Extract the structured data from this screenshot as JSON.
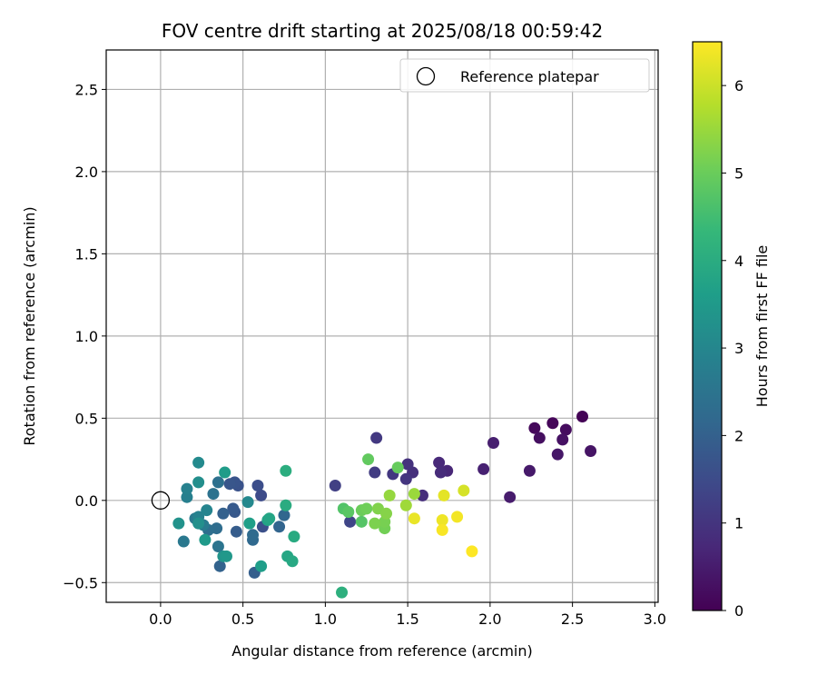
{
  "chart_data": {
    "type": "scatter",
    "title": "FOV centre drift starting at 2025/08/18 00:59:42",
    "xlabel": "Angular distance from reference (arcmin)",
    "ylabel": "Rotation from reference (arcmin)",
    "xlim": [
      -0.33,
      3.02
    ],
    "ylim": [
      -0.62,
      2.74
    ],
    "xticks": [
      0.0,
      0.5,
      1.0,
      1.5,
      2.0,
      2.5,
      3.0
    ],
    "xtick_labels": [
      "0.0",
      "0.5",
      "1.0",
      "1.5",
      "2.0",
      "2.5",
      "3.0"
    ],
    "yticks": [
      -0.5,
      0.0,
      0.5,
      1.0,
      1.5,
      2.0,
      2.5
    ],
    "ytick_labels": [
      "−0.5",
      "0.0",
      "0.5",
      "1.0",
      "1.5",
      "2.0",
      "2.5"
    ],
    "grid": true,
    "legend": {
      "placement": "top-right",
      "label": "Reference platepar"
    },
    "reference_point": {
      "x": 0.0,
      "y": 0.0
    },
    "colorbar": {
      "label": "Hours from first FF file",
      "colormap": "viridis",
      "range": [
        0,
        6.5
      ],
      "ticks": [
        0,
        1,
        2,
        3,
        4,
        5,
        6
      ],
      "tick_labels": [
        "0",
        "1",
        "2",
        "3",
        "4",
        "5",
        "6"
      ]
    },
    "points": [
      {
        "x": 2.56,
        "y": 0.51,
        "t": 0.05
      },
      {
        "x": 2.38,
        "y": 0.47,
        "t": 0.1
      },
      {
        "x": 2.27,
        "y": 0.44,
        "t": 0.15
      },
      {
        "x": 2.46,
        "y": 0.43,
        "t": 0.2
      },
      {
        "x": 2.3,
        "y": 0.38,
        "t": 0.25
      },
      {
        "x": 2.44,
        "y": 0.37,
        "t": 0.3
      },
      {
        "x": 2.61,
        "y": 0.3,
        "t": 0.35
      },
      {
        "x": 2.41,
        "y": 0.28,
        "t": 0.4
      },
      {
        "x": 2.24,
        "y": 0.18,
        "t": 0.45
      },
      {
        "x": 2.12,
        "y": 0.02,
        "t": 0.5
      },
      {
        "x": 2.02,
        "y": 0.35,
        "t": 0.55
      },
      {
        "x": 1.96,
        "y": 0.19,
        "t": 0.6
      },
      {
        "x": 1.74,
        "y": 0.18,
        "t": 0.7
      },
      {
        "x": 1.69,
        "y": 0.23,
        "t": 0.75
      },
      {
        "x": 1.7,
        "y": 0.17,
        "t": 0.8
      },
      {
        "x": 1.59,
        "y": 0.03,
        "t": 0.85
      },
      {
        "x": 1.53,
        "y": 0.17,
        "t": 0.9
      },
      {
        "x": 1.5,
        "y": 0.22,
        "t": 0.95
      },
      {
        "x": 1.49,
        "y": 0.13,
        "t": 1.0
      },
      {
        "x": 1.41,
        "y": 0.16,
        "t": 1.05
      },
      {
        "x": 1.31,
        "y": 0.38,
        "t": 1.1
      },
      {
        "x": 1.3,
        "y": 0.17,
        "t": 1.15
      },
      {
        "x": 1.06,
        "y": 0.09,
        "t": 1.25
      },
      {
        "x": 1.15,
        "y": -0.13,
        "t": 1.35
      },
      {
        "x": 0.61,
        "y": 0.03,
        "t": 1.5
      },
      {
        "x": 0.59,
        "y": 0.09,
        "t": 1.55
      },
      {
        "x": 0.62,
        "y": -0.16,
        "t": 1.6
      },
      {
        "x": 0.47,
        "y": 0.09,
        "t": 1.65
      },
      {
        "x": 0.45,
        "y": 0.11,
        "t": 1.7
      },
      {
        "x": 0.42,
        "y": 0.1,
        "t": 1.75
      },
      {
        "x": 0.45,
        "y": -0.07,
        "t": 1.8
      },
      {
        "x": 0.44,
        "y": -0.05,
        "t": 1.85
      },
      {
        "x": 0.46,
        "y": -0.19,
        "t": 1.9
      },
      {
        "x": 0.57,
        "y": -0.44,
        "t": 1.95
      },
      {
        "x": 0.38,
        "y": -0.08,
        "t": 2.0
      },
      {
        "x": 0.36,
        "y": -0.4,
        "t": 2.05
      },
      {
        "x": 0.72,
        "y": -0.16,
        "t": 2.1
      },
      {
        "x": 0.75,
        "y": -0.09,
        "t": 2.15
      },
      {
        "x": 0.56,
        "y": -0.24,
        "t": 2.2
      },
      {
        "x": 0.56,
        "y": -0.21,
        "t": 2.25
      },
      {
        "x": 0.34,
        "y": -0.17,
        "t": 2.3
      },
      {
        "x": 0.29,
        "y": -0.18,
        "t": 2.35
      },
      {
        "x": 0.35,
        "y": 0.11,
        "t": 2.4
      },
      {
        "x": 0.32,
        "y": 0.04,
        "t": 2.45
      },
      {
        "x": 0.35,
        "y": -0.28,
        "t": 2.5
      },
      {
        "x": 0.14,
        "y": -0.25,
        "t": 2.6
      },
      {
        "x": 0.21,
        "y": -0.11,
        "t": 2.65
      },
      {
        "x": 0.26,
        "y": -0.15,
        "t": 2.7
      },
      {
        "x": 0.16,
        "y": 0.02,
        "t": 2.8
      },
      {
        "x": 0.16,
        "y": 0.07,
        "t": 2.85
      },
      {
        "x": 0.23,
        "y": -0.1,
        "t": 2.9
      },
      {
        "x": 0.28,
        "y": -0.06,
        "t": 2.95
      },
      {
        "x": 0.53,
        "y": -0.01,
        "t": 3.05
      },
      {
        "x": 0.23,
        "y": 0.23,
        "t": 3.1
      },
      {
        "x": 0.23,
        "y": 0.11,
        "t": 3.2
      },
      {
        "x": 0.23,
        "y": -0.14,
        "t": 3.25
      },
      {
        "x": 0.11,
        "y": -0.14,
        "t": 3.3
      },
      {
        "x": 0.38,
        "y": -0.34,
        "t": 3.35
      },
      {
        "x": 0.4,
        "y": -0.34,
        "t": 3.45
      },
      {
        "x": 0.27,
        "y": -0.24,
        "t": 3.5
      },
      {
        "x": 0.39,
        "y": 0.17,
        "t": 3.55
      },
      {
        "x": 0.61,
        "y": -0.4,
        "t": 3.6
      },
      {
        "x": 0.54,
        "y": -0.14,
        "t": 3.65
      },
      {
        "x": 0.65,
        "y": -0.12,
        "t": 3.75
      },
      {
        "x": 0.66,
        "y": -0.11,
        "t": 3.8
      },
      {
        "x": 0.77,
        "y": -0.34,
        "t": 3.85
      },
      {
        "x": 0.8,
        "y": -0.37,
        "t": 3.9
      },
      {
        "x": 0.81,
        "y": -0.22,
        "t": 3.95
      },
      {
        "x": 0.76,
        "y": -0.03,
        "t": 4.0
      },
      {
        "x": 0.76,
        "y": 0.18,
        "t": 4.05
      },
      {
        "x": 1.1,
        "y": -0.56,
        "t": 4.1
      },
      {
        "x": 1.11,
        "y": -0.05,
        "t": 4.7
      },
      {
        "x": 1.22,
        "y": -0.13,
        "t": 4.75
      },
      {
        "x": 1.14,
        "y": -0.07,
        "t": 4.8
      },
      {
        "x": 1.26,
        "y": 0.25,
        "t": 4.9
      },
      {
        "x": 1.44,
        "y": 0.2,
        "t": 4.95
      },
      {
        "x": 1.22,
        "y": -0.06,
        "t": 5.0
      },
      {
        "x": 1.25,
        "y": -0.05,
        "t": 5.05
      },
      {
        "x": 1.36,
        "y": -0.17,
        "t": 5.1
      },
      {
        "x": 1.36,
        "y": -0.13,
        "t": 5.15
      },
      {
        "x": 1.3,
        "y": -0.14,
        "t": 5.2
      },
      {
        "x": 1.32,
        "y": -0.05,
        "t": 5.25
      },
      {
        "x": 1.37,
        "y": -0.08,
        "t": 5.3
      },
      {
        "x": 1.39,
        "y": 0.03,
        "t": 5.45
      },
      {
        "x": 1.54,
        "y": 0.04,
        "t": 5.5
      },
      {
        "x": 1.49,
        "y": -0.03,
        "t": 5.55
      },
      {
        "x": 1.84,
        "y": 0.06,
        "t": 6.1
      },
      {
        "x": 1.72,
        "y": 0.03,
        "t": 6.25
      },
      {
        "x": 1.54,
        "y": -0.11,
        "t": 6.3
      },
      {
        "x": 1.71,
        "y": -0.12,
        "t": 6.35
      },
      {
        "x": 1.8,
        "y": -0.1,
        "t": 6.4
      },
      {
        "x": 1.71,
        "y": -0.18,
        "t": 6.45
      },
      {
        "x": 1.89,
        "y": -0.31,
        "t": 6.5
      }
    ]
  }
}
